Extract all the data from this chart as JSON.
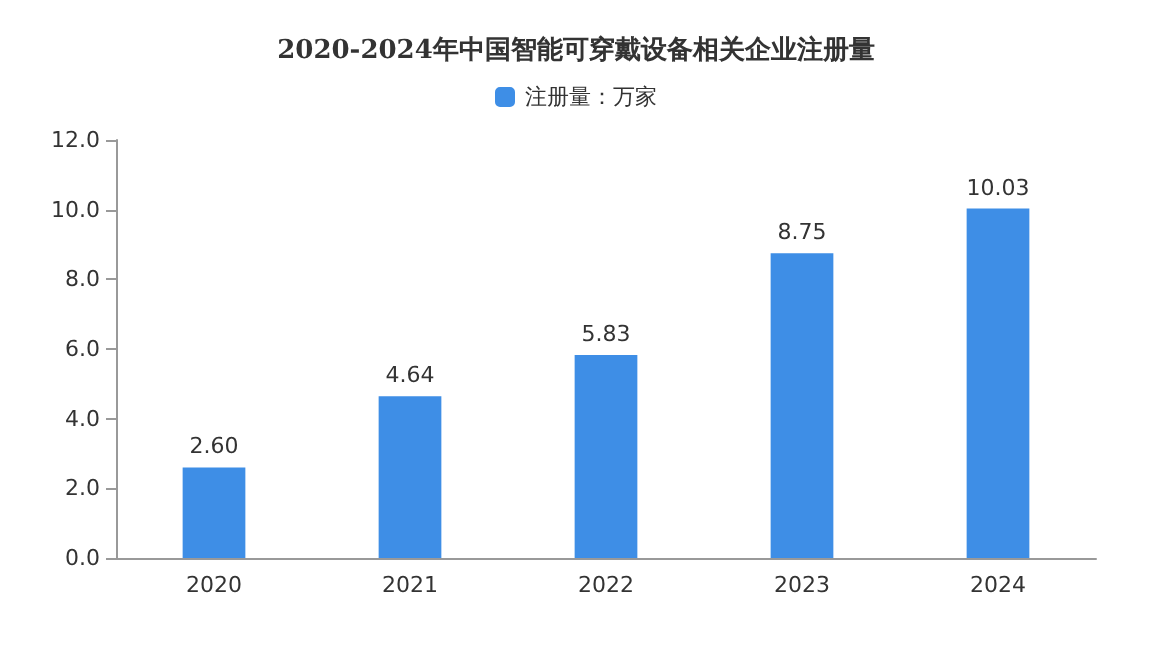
{
  "chart_data": {
    "type": "bar",
    "title": "2020-2024年中国智能可穿戴设备相关企业注册量",
    "categories": [
      "2020",
      "2021",
      "2022",
      "2023",
      "2024"
    ],
    "series": [
      {
        "name": "注册量：万家",
        "color": "#3e8ee6",
        "values": [
          2.6,
          4.64,
          5.83,
          8.75,
          10.03
        ],
        "value_labels": [
          "2.60",
          "4.64",
          "5.83",
          "8.75",
          "10.03"
        ]
      }
    ],
    "ylim": [
      0,
      12
    ],
    "yticks": [
      {
        "value": 0,
        "label": "0.0"
      },
      {
        "value": 2,
        "label": "2.0"
      },
      {
        "value": 4,
        "label": "4.0"
      },
      {
        "value": 6,
        "label": "6.0"
      },
      {
        "value": 8,
        "label": "8.0"
      },
      {
        "value": 10,
        "label": "10.0"
      },
      {
        "value": 12,
        "label": "12.0"
      }
    ],
    "grid": false,
    "legend": "top"
  }
}
